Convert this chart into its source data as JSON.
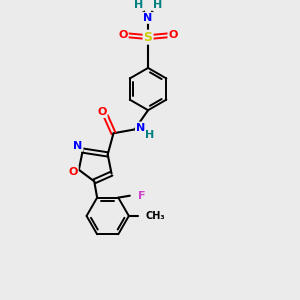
{
  "background_color": "#ebebeb",
  "atom_colors": {
    "C": "#000000",
    "N": "#0000ff",
    "O": "#ff0000",
    "S": "#cccc00",
    "F": "#cc44cc",
    "H": "#008080"
  },
  "bond_color": "#000000",
  "figsize": [
    3.0,
    3.0
  ],
  "dpi": 100
}
